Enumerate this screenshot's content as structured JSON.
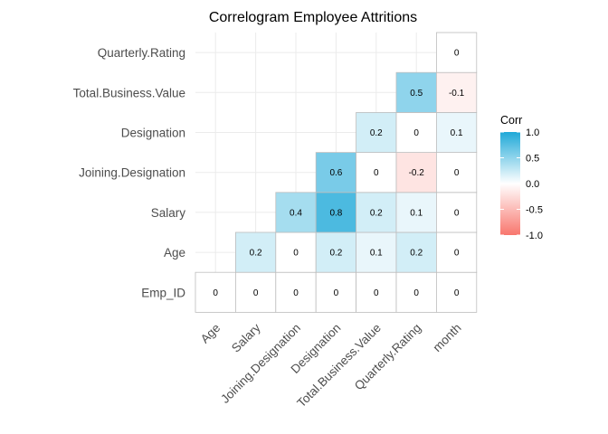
{
  "chart_data": {
    "type": "heatmap",
    "title": "Correlogram Employee Attritions",
    "x_labels": [
      "Age",
      "Salary",
      "Joining.Designation",
      "Designation",
      "Total.Business.Value",
      "Quarterly.Rating",
      "month"
    ],
    "y_labels": [
      "Emp_ID",
      "Age",
      "Salary",
      "Joining.Designation",
      "Designation",
      "Total.Business.Value",
      "Quarterly.Rating"
    ],
    "cells": [
      {
        "x": "Age",
        "y": "Emp_ID",
        "value": 0,
        "label": "0"
      },
      {
        "x": "Salary",
        "y": "Emp_ID",
        "value": 0,
        "label": "0"
      },
      {
        "x": "Joining.Designation",
        "y": "Emp_ID",
        "value": 0,
        "label": "0"
      },
      {
        "x": "Designation",
        "y": "Emp_ID",
        "value": 0,
        "label": "0"
      },
      {
        "x": "Total.Business.Value",
        "y": "Emp_ID",
        "value": 0,
        "label": "0"
      },
      {
        "x": "Quarterly.Rating",
        "y": "Emp_ID",
        "value": 0,
        "label": "0"
      },
      {
        "x": "month",
        "y": "Emp_ID",
        "value": 0,
        "label": "0"
      },
      {
        "x": "Salary",
        "y": "Age",
        "value": 0.2,
        "label": "0.2"
      },
      {
        "x": "Joining.Designation",
        "y": "Age",
        "value": 0,
        "label": "0"
      },
      {
        "x": "Designation",
        "y": "Age",
        "value": 0.2,
        "label": "0.2"
      },
      {
        "x": "Total.Business.Value",
        "y": "Age",
        "value": 0.1,
        "label": "0.1"
      },
      {
        "x": "Quarterly.Rating",
        "y": "Age",
        "value": 0.2,
        "label": "0.2"
      },
      {
        "x": "month",
        "y": "Age",
        "value": 0,
        "label": "0"
      },
      {
        "x": "Joining.Designation",
        "y": "Salary",
        "value": 0.4,
        "label": "0.4"
      },
      {
        "x": "Designation",
        "y": "Salary",
        "value": 0.8,
        "label": "0.8"
      },
      {
        "x": "Total.Business.Value",
        "y": "Salary",
        "value": 0.2,
        "label": "0.2"
      },
      {
        "x": "Quarterly.Rating",
        "y": "Salary",
        "value": 0.1,
        "label": "0.1"
      },
      {
        "x": "month",
        "y": "Salary",
        "value": 0,
        "label": "0"
      },
      {
        "x": "Designation",
        "y": "Joining.Designation",
        "value": 0.6,
        "label": "0.6"
      },
      {
        "x": "Total.Business.Value",
        "y": "Joining.Designation",
        "value": 0,
        "label": "0"
      },
      {
        "x": "Quarterly.Rating",
        "y": "Joining.Designation",
        "value": -0.2,
        "label": "-0.2"
      },
      {
        "x": "month",
        "y": "Joining.Designation",
        "value": 0,
        "label": "0"
      },
      {
        "x": "Total.Business.Value",
        "y": "Designation",
        "value": 0.2,
        "label": "0.2"
      },
      {
        "x": "Quarterly.Rating",
        "y": "Designation",
        "value": 0,
        "label": "0"
      },
      {
        "x": "month",
        "y": "Designation",
        "value": 0.1,
        "label": "0.1"
      },
      {
        "x": "Quarterly.Rating",
        "y": "Total.Business.Value",
        "value": 0.5,
        "label": "0.5"
      },
      {
        "x": "month",
        "y": "Total.Business.Value",
        "value": -0.1,
        "label": "-0.1"
      },
      {
        "x": "month",
        "y": "Quarterly.Rating",
        "value": 0,
        "label": "0"
      }
    ],
    "legend": {
      "title": "Corr",
      "placement": "right",
      "range": [
        -1,
        1
      ],
      "ticks": [
        "1.0",
        "0.5",
        "0.0",
        "-0.5",
        "-1.0"
      ],
      "tick_values": [
        1,
        0.5,
        0,
        -0.5,
        -1
      ]
    },
    "colors": {
      "low": "#f8766d",
      "mid": "#ffffff",
      "high": "#1fa9d8"
    },
    "grid": true
  }
}
